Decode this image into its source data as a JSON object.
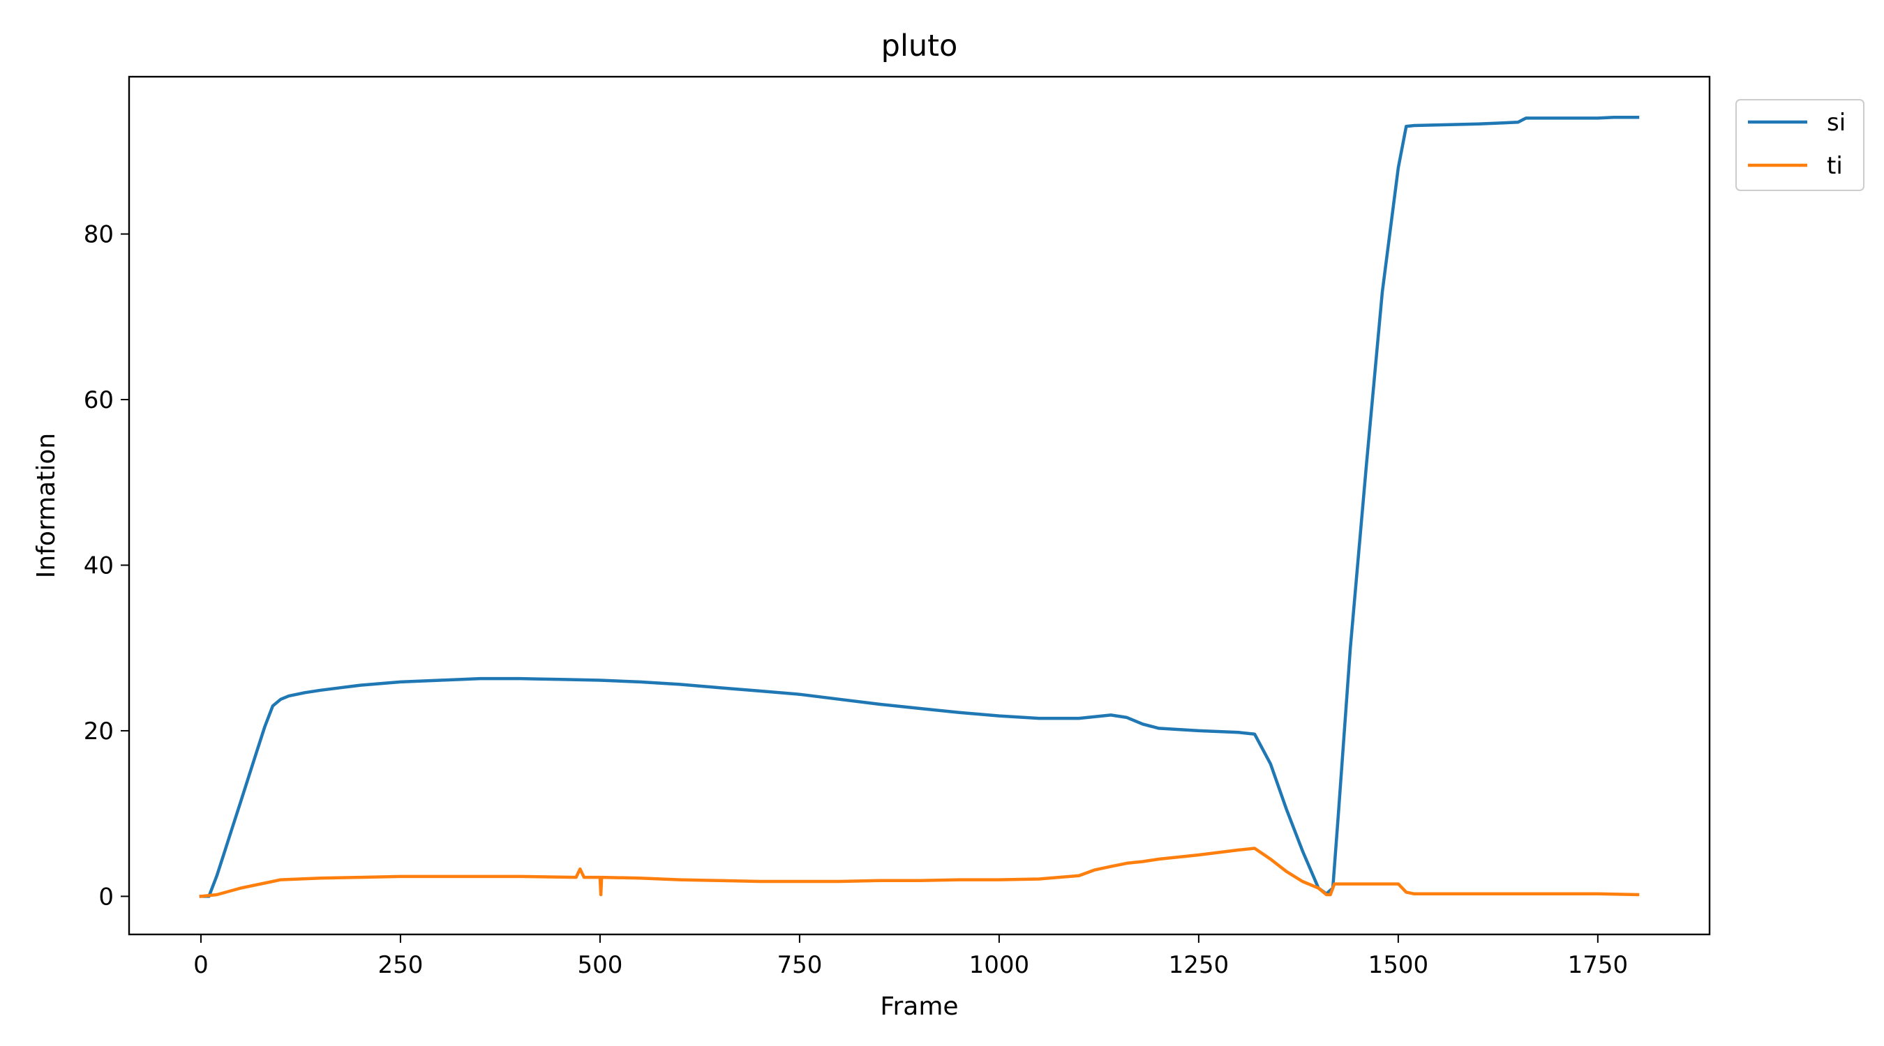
{
  "chart_data": {
    "type": "line",
    "title": "pluto",
    "xlabel": "Frame",
    "ylabel": "Information",
    "xlim": [
      -90,
      1890
    ],
    "ylim": [
      -4.6,
      99
    ],
    "xticks": [
      0,
      250,
      500,
      750,
      1000,
      1250,
      1500,
      1750
    ],
    "yticks": [
      0,
      20,
      40,
      60,
      80
    ],
    "grid": false,
    "legend_position": "outside-top-right",
    "series": [
      {
        "name": "si",
        "color": "#1f77b4",
        "x": [
          0,
          10,
          20,
          30,
          40,
          50,
          60,
          70,
          80,
          90,
          100,
          110,
          130,
          150,
          175,
          200,
          250,
          300,
          350,
          400,
          450,
          500,
          550,
          600,
          650,
          700,
          750,
          800,
          850,
          900,
          950,
          1000,
          1050,
          1100,
          1120,
          1140,
          1160,
          1180,
          1200,
          1250,
          1300,
          1320,
          1340,
          1360,
          1380,
          1400,
          1410,
          1418,
          1425,
          1440,
          1460,
          1480,
          1500,
          1510,
          1520,
          1600,
          1650,
          1660,
          1700,
          1750,
          1770,
          1780,
          1800
        ],
        "values": [
          0,
          0,
          2.5,
          5.5,
          8.5,
          11.5,
          14.5,
          17.5,
          20.5,
          23,
          23.8,
          24.2,
          24.6,
          24.9,
          25.2,
          25.5,
          25.9,
          26.1,
          26.3,
          26.3,
          26.2,
          26.1,
          25.9,
          25.6,
          25.2,
          24.8,
          24.4,
          23.8,
          23.2,
          22.7,
          22.2,
          21.8,
          21.5,
          21.5,
          21.7,
          21.9,
          21.6,
          20.8,
          20.3,
          20.0,
          19.8,
          19.6,
          16,
          10.5,
          5.5,
          1,
          0.3,
          1,
          10,
          30,
          52,
          73,
          88,
          93,
          93.1,
          93.3,
          93.5,
          94.0,
          94.0,
          94.0,
          94.1,
          94.1,
          94.1
        ]
      },
      {
        "name": "ti",
        "color": "#ff7f0e",
        "x": [
          0,
          20,
          50,
          100,
          150,
          200,
          250,
          300,
          400,
          470,
          475,
          480,
          500,
          501,
          502,
          550,
          600,
          650,
          700,
          750,
          800,
          850,
          900,
          950,
          1000,
          1050,
          1100,
          1120,
          1140,
          1160,
          1180,
          1200,
          1250,
          1300,
          1320,
          1340,
          1360,
          1380,
          1400,
          1410,
          1415,
          1420,
          1430,
          1450,
          1500,
          1510,
          1520,
          1600,
          1650,
          1700,
          1750,
          1800
        ],
        "values": [
          0,
          0.2,
          1,
          2,
          2.2,
          2.3,
          2.4,
          2.4,
          2.4,
          2.3,
          3.3,
          2.3,
          2.3,
          0.2,
          2.3,
          2.2,
          2.0,
          1.9,
          1.8,
          1.8,
          1.8,
          1.9,
          1.9,
          2.0,
          2.0,
          2.1,
          2.5,
          3.2,
          3.6,
          4.0,
          4.2,
          4.5,
          5.0,
          5.6,
          5.8,
          4.5,
          3.0,
          1.8,
          1.0,
          0.2,
          0.2,
          1.5,
          1.5,
          1.5,
          1.5,
          0.5,
          0.3,
          0.3,
          0.3,
          0.3,
          0.3,
          0.2
        ]
      }
    ]
  }
}
